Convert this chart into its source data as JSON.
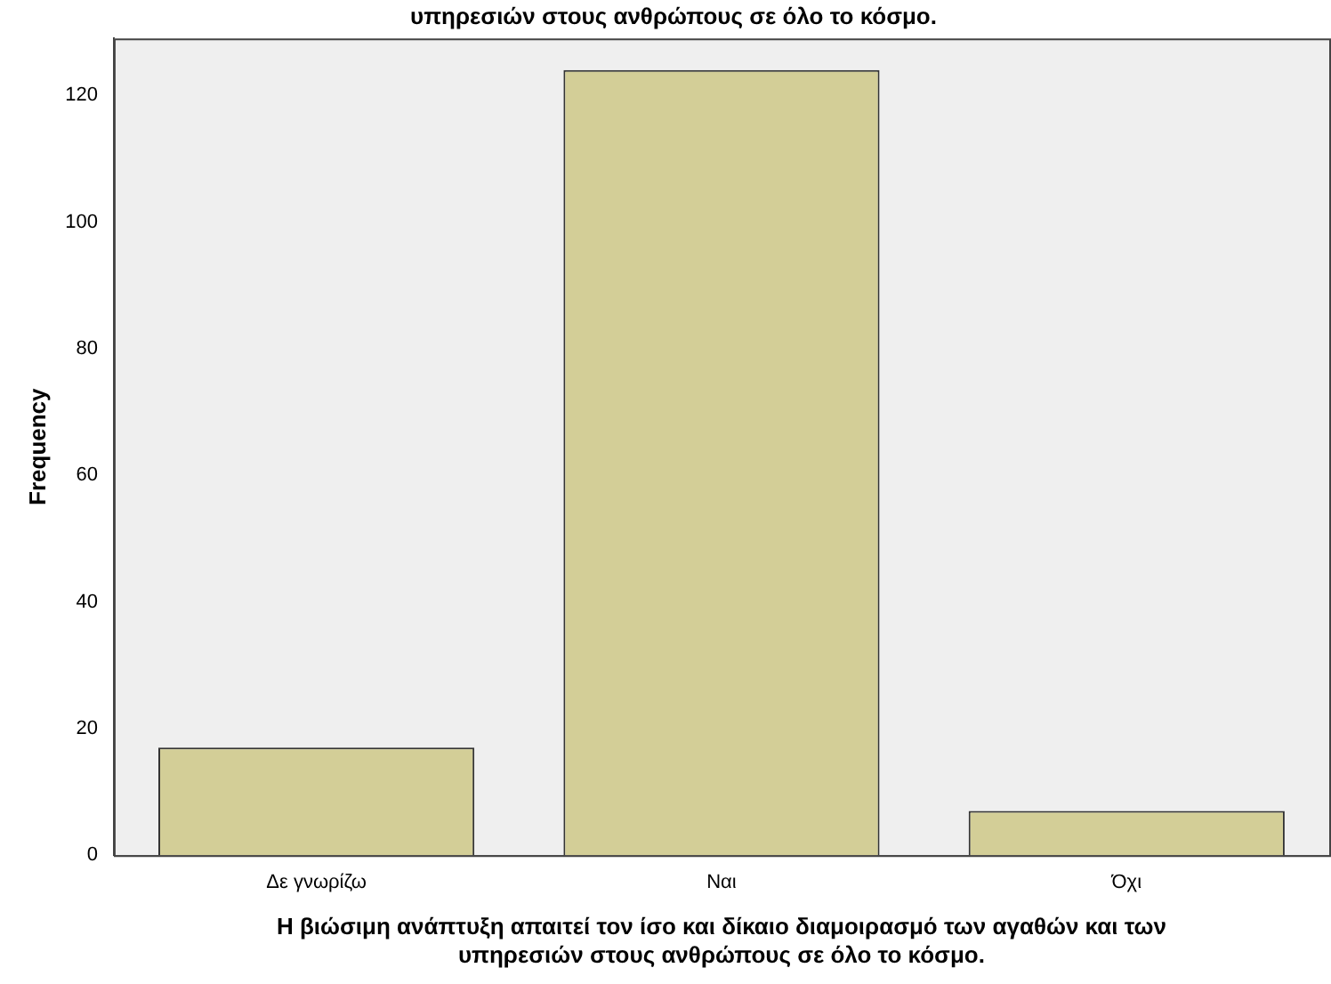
{
  "chart_data": {
    "type": "bar",
    "title": "υπηρεσιών στους ανθρώπους σε όλο το κόσμο.",
    "xlabel": "Η βιώσιμη ανάπτυξη απαιτεί τον ίσο και δίκαιο διαμοιρασμό των αγαθών και των υπηρεσιών στους ανθρώπους σε όλο το κόσμο.",
    "ylabel": "Frequency",
    "categories": [
      "Δε γνωρίζω",
      "Ναι",
      "Όχι"
    ],
    "values": [
      17,
      124,
      7
    ],
    "color": "#d3ce97",
    "ylim": [
      0,
      129
    ],
    "yticks": [
      0,
      20,
      40,
      60,
      80,
      100,
      120
    ],
    "grid": false,
    "legend": false
  }
}
